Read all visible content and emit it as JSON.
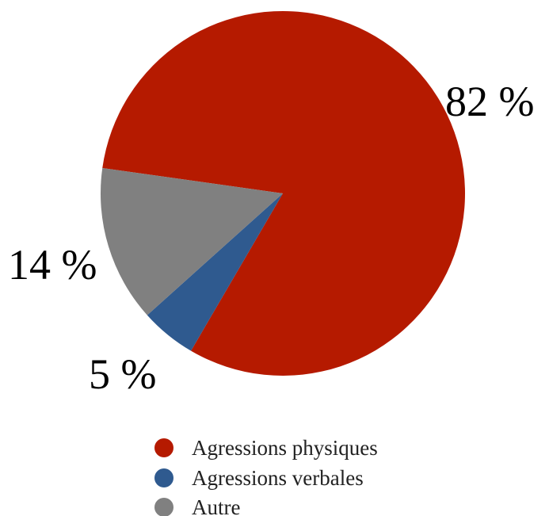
{
  "chart_data": {
    "type": "pie",
    "slices": [
      {
        "name": "Agressions physiques",
        "value": 82,
        "label": "82 %",
        "color": "#B51A00"
      },
      {
        "name": "Agressions verbales",
        "value": 5,
        "label": "5 %",
        "color": "#2F5A8F"
      },
      {
        "name": "Autre",
        "value": 14,
        "label": "14 %",
        "color": "#808080"
      }
    ],
    "unit": "%",
    "legend_position": "bottom",
    "start_angle_deg": 188
  }
}
